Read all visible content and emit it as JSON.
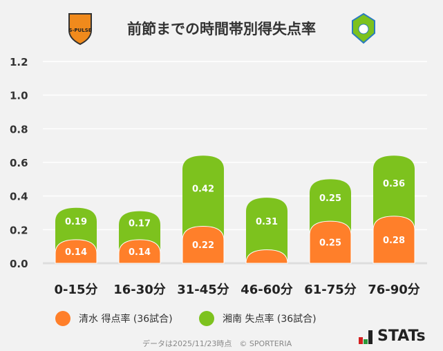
{
  "title": "前節までの時間帯別得失点率",
  "logos": {
    "left": "S-PULSE",
    "right": "BELLMARE"
  },
  "chart_data": {
    "type": "bar",
    "stacked": true,
    "categories": [
      "0-15分",
      "16-30分",
      "31-45分",
      "46-60分",
      "61-75分",
      "76-90分"
    ],
    "series": [
      {
        "name": "清水 得点率 (36試合)",
        "color": "#ff7f2a",
        "values": [
          0.14,
          0.14,
          0.22,
          0.08,
          0.25,
          0.28
        ],
        "labels": [
          "0.14",
          "0.14",
          "0.22",
          "",
          "0.25",
          "0.28"
        ]
      },
      {
        "name": "湘南 失点率 (36試合)",
        "color": "#7dc21e",
        "values": [
          0.19,
          0.17,
          0.42,
          0.31,
          0.25,
          0.36
        ],
        "labels": [
          "0.19",
          "0.17",
          "0.42",
          "0.31",
          "0.25",
          "0.36"
        ]
      }
    ],
    "yticks": [
      "0.0",
      "0.2",
      "0.4",
      "0.6",
      "0.8",
      "1.0",
      "1.2"
    ],
    "ylim": [
      0,
      1.2
    ],
    "grid": true,
    "legend": "bottom"
  },
  "footer": "データは2025/11/23時点　© SPORTERIA",
  "brand": "STATs"
}
